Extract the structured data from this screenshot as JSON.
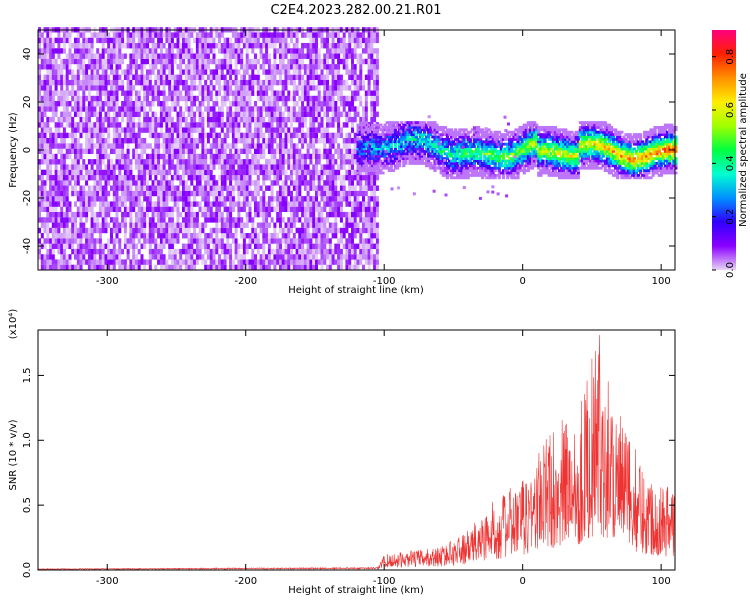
{
  "figure_title": "C2E4.2023.282.00.21.R01",
  "chart_data": [
    {
      "type": "heatmap",
      "xlabel": "Height of straight line (km)",
      "ylabel": "Frequency (Hz)",
      "xlim": [
        -350,
        110
      ],
      "ylim": [
        -50,
        50
      ],
      "xticks": [
        -300,
        -200,
        -100,
        0,
        100
      ],
      "yticks": [
        -40,
        -20,
        0,
        20,
        40
      ],
      "grid": false,
      "colorbar": {
        "label": "Normalized spectral amplitude",
        "range": [
          0.0,
          0.9
        ],
        "ticks": [
          "0.0",
          "0.2",
          "0.4",
          "0.6",
          "0.8"
        ],
        "colormap": [
          "#e8d4f5",
          "#8a00ff",
          "#3000ff",
          "#0090ff",
          "#00ffd0",
          "#00ff40",
          "#a0ff00",
          "#ffee00",
          "#ff9000",
          "#ff2000",
          "#ff0080"
        ]
      },
      "regions": [
        {
          "x_range": [
            -350,
            -105
          ],
          "description_key": "broadband noise",
          "amplitude": [
            0.0,
            0.15
          ]
        },
        {
          "x_range": [
            -120,
            110
          ],
          "center_frequency": 0,
          "half_width": 8,
          "amplitude": [
            0.1,
            0.9
          ]
        }
      ]
    },
    {
      "type": "line",
      "xlabel": "Height of straight line (km)",
      "ylabel": "SNR (10 * v/v)",
      "y_multiplier_label": "(x10⁴)",
      "xlim": [
        -350,
        110
      ],
      "ylim": [
        0,
        1.85
      ],
      "xticks": [
        -300,
        -200,
        -100,
        0,
        100
      ],
      "yticks": [
        "0.0",
        "0.5",
        "1.0",
        "1.5"
      ],
      "color": "#ee3333",
      "envelope": [
        {
          "x": -350,
          "y": 0.01
        },
        {
          "x": -105,
          "y": 0.02
        },
        {
          "x": -100,
          "y": 0.12
        },
        {
          "x": -60,
          "y": 0.18
        },
        {
          "x": -40,
          "y": 0.3
        },
        {
          "x": -20,
          "y": 0.55
        },
        {
          "x": 0,
          "y": 0.7
        },
        {
          "x": 20,
          "y": 1.1
        },
        {
          "x": 40,
          "y": 1.25
        },
        {
          "x": 55,
          "y": 1.85
        },
        {
          "x": 70,
          "y": 1.2
        },
        {
          "x": 90,
          "y": 0.75
        },
        {
          "x": 110,
          "y": 0.65
        }
      ]
    }
  ]
}
